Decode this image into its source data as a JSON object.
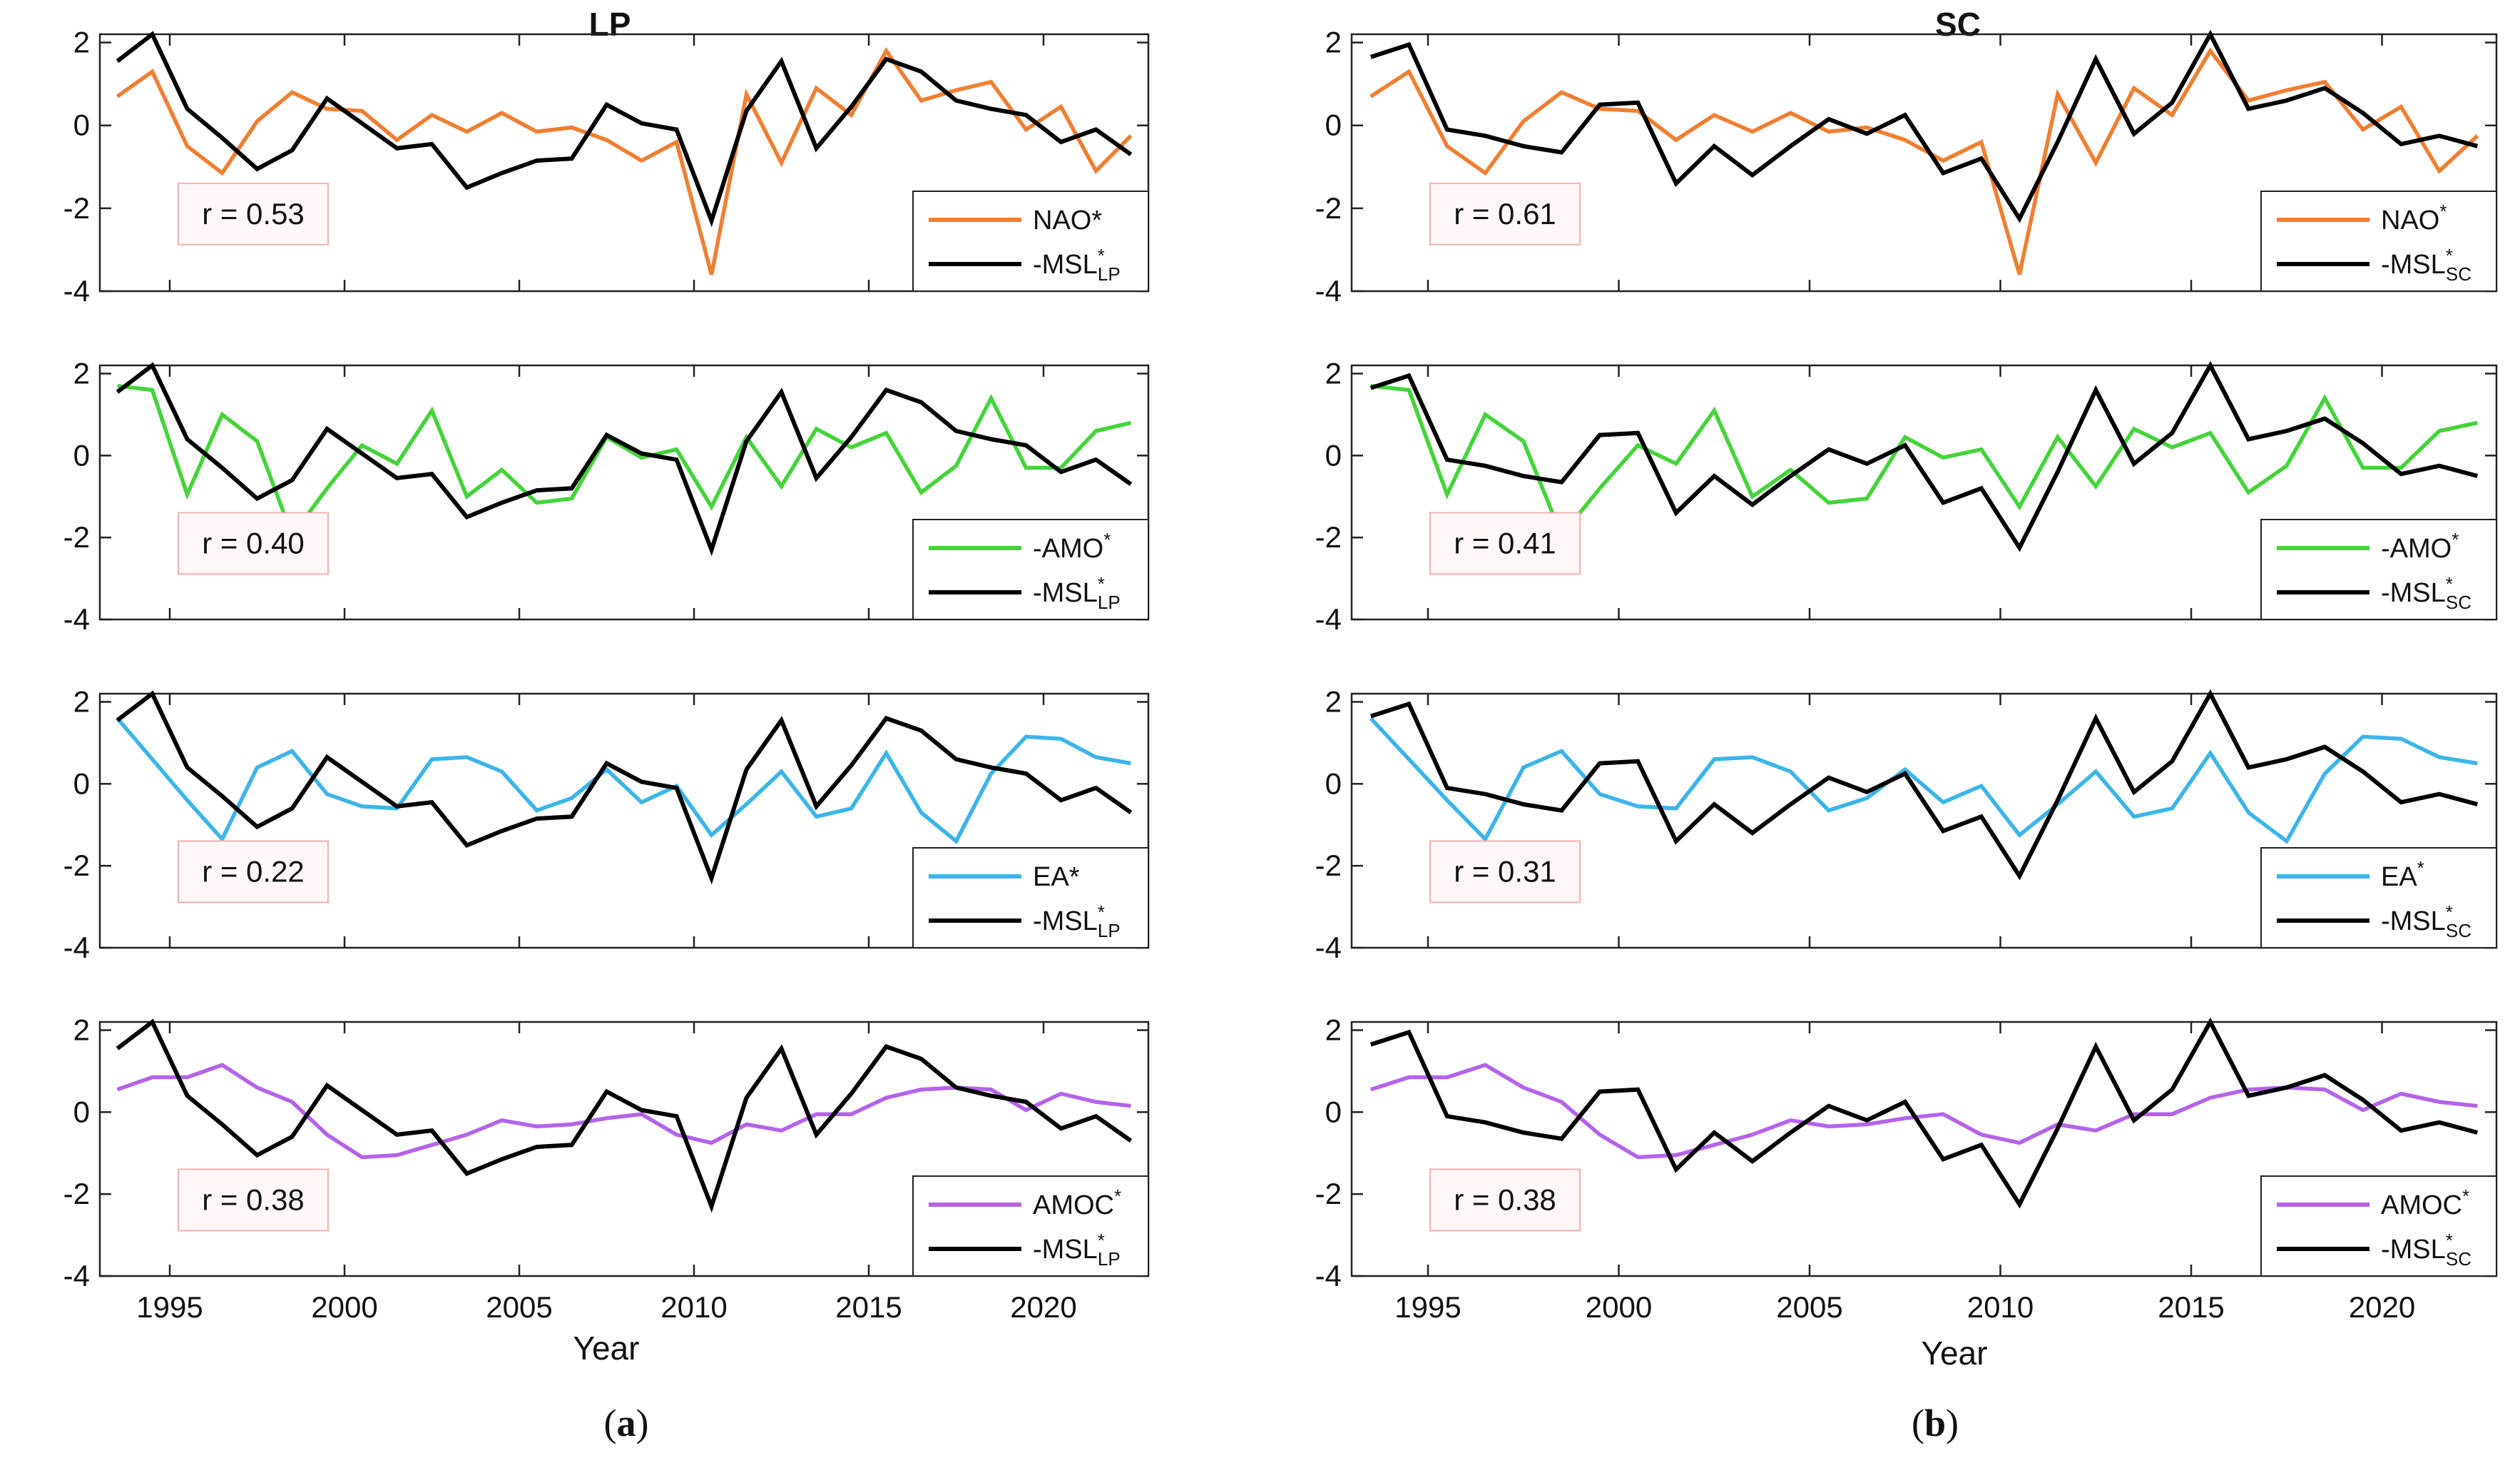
{
  "figure": {
    "left_title": "LP",
    "right_title": "SC",
    "xlabel": "Year",
    "caption_a_open": "(",
    "caption_a_letter": "a",
    "caption_a_close": ")",
    "caption_b_open": "(",
    "caption_b_letter": "b",
    "caption_b_close": ")"
  },
  "colors": {
    "NAO": "#f07f33",
    "AMO": "#44d43a",
    "EA": "#3cb5e8",
    "AMOC": "#b464ea",
    "MSL": "#000000",
    "rbox_border": "#f2b0b0",
    "rbox_fill": "#fff7f7"
  },
  "chart_data": [
    {
      "type": "line",
      "title": "LP",
      "column": "LP",
      "row": 0,
      "x": [
        1993.5,
        1994.5,
        1995.5,
        1996.5,
        1997.5,
        1998.5,
        1999.5,
        2000.5,
        2001.5,
        2002.5,
        2003.5,
        2004.5,
        2005.5,
        2006.5,
        2007.5,
        2008.5,
        2009.5,
        2010.5,
        2011.5,
        2012.5,
        2013.5,
        2014.5,
        2015.5,
        2016.5,
        2017.5,
        2018.5,
        2019.5,
        2020.5,
        2021.5,
        2022.5
      ],
      "xlim": [
        1993,
        2023
      ],
      "ylim": [
        -4,
        2.2
      ],
      "xticks": [
        1995,
        2000,
        2005,
        2010,
        2015,
        2020
      ],
      "yticks": [
        2,
        0,
        -2,
        -4
      ],
      "correlation_label": "r = 0.53",
      "series": [
        {
          "name": "NAO*",
          "legend_base": "NAO*",
          "legend_sup": "",
          "legend_sub": "",
          "color_key": "NAO",
          "values": [
            0.7,
            1.3,
            -0.5,
            -1.15,
            0.1,
            0.8,
            0.4,
            0.35,
            -0.35,
            0.25,
            -0.15,
            0.3,
            -0.15,
            -0.05,
            -0.35,
            -0.85,
            -0.4,
            -3.6,
            0.75,
            -0.9,
            0.9,
            0.25,
            1.8,
            0.6,
            0.85,
            1.05,
            -0.1,
            0.45,
            -1.1,
            -0.25
          ]
        },
        {
          "name": "-MSL*LP",
          "legend_base": "-MSL",
          "legend_sup": "*",
          "legend_sub": "LP",
          "color_key": "MSL",
          "values": [
            1.55,
            2.2,
            0.4,
            -0.3,
            -1.05,
            -0.6,
            0.65,
            0.05,
            -0.55,
            -0.45,
            -1.5,
            -1.15,
            -0.85,
            -0.8,
            0.5,
            0.05,
            -0.1,
            -2.3,
            0.35,
            1.55,
            -0.55,
            0.45,
            1.6,
            1.3,
            0.6,
            0.4,
            0.25,
            -0.4,
            -0.1,
            -0.7
          ]
        }
      ]
    },
    {
      "type": "line",
      "title": "LP",
      "column": "LP",
      "row": 1,
      "x": [
        1993.5,
        1994.5,
        1995.5,
        1996.5,
        1997.5,
        1998.5,
        1999.5,
        2000.5,
        2001.5,
        2002.5,
        2003.5,
        2004.5,
        2005.5,
        2006.5,
        2007.5,
        2008.5,
        2009.5,
        2010.5,
        2011.5,
        2012.5,
        2013.5,
        2014.5,
        2015.5,
        2016.5,
        2017.5,
        2018.5,
        2019.5,
        2020.5,
        2021.5,
        2022.5
      ],
      "xlim": [
        1993,
        2023
      ],
      "ylim": [
        -4,
        2.2
      ],
      "xticks": [
        1995,
        2000,
        2005,
        2010,
        2015,
        2020
      ],
      "yticks": [
        2,
        0,
        -2,
        -4
      ],
      "correlation_label": "r = 0.40",
      "series": [
        {
          "name": "-AMO*",
          "legend_base": "-AMO",
          "legend_sup": "*",
          "legend_sub": "",
          "color_key": "AMO",
          "values": [
            1.7,
            1.6,
            -0.95,
            1.0,
            0.35,
            -1.95,
            -0.8,
            0.25,
            -0.2,
            1.1,
            -1.0,
            -0.35,
            -1.15,
            -1.05,
            0.45,
            -0.05,
            0.15,
            -1.25,
            0.45,
            -0.75,
            0.65,
            0.2,
            0.55,
            -0.9,
            -0.25,
            1.4,
            -0.3,
            -0.3,
            0.6,
            0.8
          ]
        },
        {
          "name": "-MSL*LP",
          "legend_base": "-MSL",
          "legend_sup": "*",
          "legend_sub": "LP",
          "color_key": "MSL",
          "values": [
            1.55,
            2.2,
            0.4,
            -0.3,
            -1.05,
            -0.6,
            0.65,
            0.05,
            -0.55,
            -0.45,
            -1.5,
            -1.15,
            -0.85,
            -0.8,
            0.5,
            0.05,
            -0.1,
            -2.3,
            0.35,
            1.55,
            -0.55,
            0.45,
            1.6,
            1.3,
            0.6,
            0.4,
            0.25,
            -0.4,
            -0.1,
            -0.7
          ]
        }
      ]
    },
    {
      "type": "line",
      "title": "LP",
      "column": "LP",
      "row": 2,
      "x": [
        1993.5,
        1994.5,
        1995.5,
        1996.5,
        1997.5,
        1998.5,
        1999.5,
        2000.5,
        2001.5,
        2002.5,
        2003.5,
        2004.5,
        2005.5,
        2006.5,
        2007.5,
        2008.5,
        2009.5,
        2010.5,
        2011.5,
        2012.5,
        2013.5,
        2014.5,
        2015.5,
        2016.5,
        2017.5,
        2018.5,
        2019.5,
        2020.5,
        2021.5,
        2022.5
      ],
      "xlim": [
        1993,
        2023
      ],
      "ylim": [
        -4,
        2.2
      ],
      "xticks": [
        1995,
        2000,
        2005,
        2010,
        2015,
        2020
      ],
      "yticks": [
        2,
        0,
        -2,
        -4
      ],
      "correlation_label": "r = 0.22",
      "series": [
        {
          "name": "EA*",
          "legend_base": "EA*",
          "legend_sup": "",
          "legend_sub": "",
          "color_key": "EA",
          "values": [
            1.6,
            0.6,
            -0.4,
            -1.35,
            0.4,
            0.8,
            -0.25,
            -0.55,
            -0.6,
            0.6,
            0.65,
            0.3,
            -0.65,
            -0.35,
            0.35,
            -0.45,
            -0.05,
            -1.25,
            -0.5,
            0.3,
            -0.8,
            -0.6,
            0.75,
            -0.7,
            -1.4,
            0.25,
            1.15,
            1.1,
            0.65,
            0.5
          ]
        },
        {
          "name": "-MSL*LP",
          "legend_base": "-MSL",
          "legend_sup": "*",
          "legend_sub": "LP",
          "color_key": "MSL",
          "values": [
            1.55,
            2.2,
            0.4,
            -0.3,
            -1.05,
            -0.6,
            0.65,
            0.05,
            -0.55,
            -0.45,
            -1.5,
            -1.15,
            -0.85,
            -0.8,
            0.5,
            0.05,
            -0.1,
            -2.3,
            0.35,
            1.55,
            -0.55,
            0.45,
            1.6,
            1.3,
            0.6,
            0.4,
            0.25,
            -0.4,
            -0.1,
            -0.7
          ]
        }
      ]
    },
    {
      "type": "line",
      "title": "LP",
      "column": "LP",
      "row": 3,
      "x": [
        1993.5,
        1994.5,
        1995.5,
        1996.5,
        1997.5,
        1998.5,
        1999.5,
        2000.5,
        2001.5,
        2002.5,
        2003.5,
        2004.5,
        2005.5,
        2006.5,
        2007.5,
        2008.5,
        2009.5,
        2010.5,
        2011.5,
        2012.5,
        2013.5,
        2014.5,
        2015.5,
        2016.5,
        2017.5,
        2018.5,
        2019.5,
        2020.5,
        2021.5,
        2022.5
      ],
      "xlim": [
        1993,
        2023
      ],
      "ylim": [
        -4,
        2.2
      ],
      "xticks": [
        1995,
        2000,
        2005,
        2010,
        2015,
        2020
      ],
      "yticks": [
        2,
        0,
        -2,
        -4
      ],
      "correlation_label": "r = 0.38",
      "series": [
        {
          "name": "AMOC*",
          "legend_base": "AMOC",
          "legend_sup": "*",
          "legend_sub": "",
          "color_key": "AMOC",
          "values": [
            0.55,
            0.85,
            0.85,
            1.15,
            0.6,
            0.25,
            -0.55,
            -1.1,
            -1.05,
            -0.8,
            -0.55,
            -0.2,
            -0.35,
            -0.3,
            -0.15,
            -0.05,
            -0.55,
            -0.75,
            -0.3,
            -0.45,
            -0.05,
            -0.05,
            0.35,
            0.55,
            0.6,
            0.55,
            0.05,
            0.45,
            0.25,
            0.15
          ]
        },
        {
          "name": "-MSL*LP",
          "legend_base": "-MSL",
          "legend_sup": "*",
          "legend_sub": "LP",
          "color_key": "MSL",
          "values": [
            1.55,
            2.2,
            0.4,
            -0.3,
            -1.05,
            -0.6,
            0.65,
            0.05,
            -0.55,
            -0.45,
            -1.5,
            -1.15,
            -0.85,
            -0.8,
            0.5,
            0.05,
            -0.1,
            -2.3,
            0.35,
            1.55,
            -0.55,
            0.45,
            1.6,
            1.3,
            0.6,
            0.4,
            0.25,
            -0.4,
            -0.1,
            -0.7
          ]
        }
      ]
    },
    {
      "type": "line",
      "title": "SC",
      "column": "SC",
      "row": 0,
      "x": [
        1993.5,
        1994.5,
        1995.5,
        1996.5,
        1997.5,
        1998.5,
        1999.5,
        2000.5,
        2001.5,
        2002.5,
        2003.5,
        2004.5,
        2005.5,
        2006.5,
        2007.5,
        2008.5,
        2009.5,
        2010.5,
        2011.5,
        2012.5,
        2013.5,
        2014.5,
        2015.5,
        2016.5,
        2017.5,
        2018.5,
        2019.5,
        2020.5,
        2021.5,
        2022.5
      ],
      "xlim": [
        1993,
        2023
      ],
      "ylim": [
        -4,
        2.2
      ],
      "xticks": [
        1995,
        2000,
        2005,
        2010,
        2015,
        2020
      ],
      "yticks": [
        2,
        0,
        -2,
        -4
      ],
      "correlation_label": "r = 0.61",
      "series": [
        {
          "name": "NAO*",
          "legend_base": "NAO",
          "legend_sup": "*",
          "legend_sub": "",
          "color_key": "NAO",
          "values": [
            0.7,
            1.3,
            -0.5,
            -1.15,
            0.1,
            0.8,
            0.4,
            0.35,
            -0.35,
            0.25,
            -0.15,
            0.3,
            -0.15,
            -0.05,
            -0.35,
            -0.85,
            -0.4,
            -3.6,
            0.75,
            -0.9,
            0.9,
            0.25,
            1.8,
            0.6,
            0.85,
            1.05,
            -0.1,
            0.45,
            -1.1,
            -0.25
          ]
        },
        {
          "name": "-MSL*SC",
          "legend_base": "-MSL",
          "legend_sup": "*",
          "legend_sub": "SC",
          "color_key": "MSL",
          "values": [
            1.65,
            1.95,
            -0.1,
            -0.25,
            -0.5,
            -0.65,
            0.5,
            0.55,
            -1.4,
            -0.5,
            -1.2,
            -0.5,
            0.15,
            -0.2,
            0.25,
            -1.15,
            -0.8,
            -2.25,
            -0.4,
            1.6,
            -0.2,
            0.55,
            2.2,
            0.4,
            0.6,
            0.9,
            0.3,
            -0.45,
            -0.25,
            -0.5
          ]
        }
      ]
    },
    {
      "type": "line",
      "title": "SC",
      "column": "SC",
      "row": 1,
      "x": [
        1993.5,
        1994.5,
        1995.5,
        1996.5,
        1997.5,
        1998.5,
        1999.5,
        2000.5,
        2001.5,
        2002.5,
        2003.5,
        2004.5,
        2005.5,
        2006.5,
        2007.5,
        2008.5,
        2009.5,
        2010.5,
        2011.5,
        2012.5,
        2013.5,
        2014.5,
        2015.5,
        2016.5,
        2017.5,
        2018.5,
        2019.5,
        2020.5,
        2021.5,
        2022.5
      ],
      "xlim": [
        1993,
        2023
      ],
      "ylim": [
        -4,
        2.2
      ],
      "xticks": [
        1995,
        2000,
        2005,
        2010,
        2015,
        2020
      ],
      "yticks": [
        2,
        0,
        -2,
        -4
      ],
      "correlation_label": "r = 0.41",
      "series": [
        {
          "name": "-AMO*",
          "legend_base": "-AMO",
          "legend_sup": "*",
          "legend_sub": "",
          "color_key": "AMO",
          "values": [
            1.7,
            1.6,
            -0.95,
            1.0,
            0.35,
            -1.95,
            -0.8,
            0.25,
            -0.2,
            1.1,
            -1.0,
            -0.35,
            -1.15,
            -1.05,
            0.45,
            -0.05,
            0.15,
            -1.25,
            0.45,
            -0.75,
            0.65,
            0.2,
            0.55,
            -0.9,
            -0.25,
            1.4,
            -0.3,
            -0.3,
            0.6,
            0.8
          ]
        },
        {
          "name": "-MSL*SC",
          "legend_base": "-MSL",
          "legend_sup": "*",
          "legend_sub": "SC",
          "color_key": "MSL",
          "values": [
            1.65,
            1.95,
            -0.1,
            -0.25,
            -0.5,
            -0.65,
            0.5,
            0.55,
            -1.4,
            -0.5,
            -1.2,
            -0.5,
            0.15,
            -0.2,
            0.25,
            -1.15,
            -0.8,
            -2.25,
            -0.4,
            1.6,
            -0.2,
            0.55,
            2.2,
            0.4,
            0.6,
            0.9,
            0.3,
            -0.45,
            -0.25,
            -0.5
          ]
        }
      ]
    },
    {
      "type": "line",
      "title": "SC",
      "column": "SC",
      "row": 2,
      "x": [
        1993.5,
        1994.5,
        1995.5,
        1996.5,
        1997.5,
        1998.5,
        1999.5,
        2000.5,
        2001.5,
        2002.5,
        2003.5,
        2004.5,
        2005.5,
        2006.5,
        2007.5,
        2008.5,
        2009.5,
        2010.5,
        2011.5,
        2012.5,
        2013.5,
        2014.5,
        2015.5,
        2016.5,
        2017.5,
        2018.5,
        2019.5,
        2020.5,
        2021.5,
        2022.5
      ],
      "xlim": [
        1993,
        2023
      ],
      "ylim": [
        -4,
        2.2
      ],
      "xticks": [
        1995,
        2000,
        2005,
        2010,
        2015,
        2020
      ],
      "yticks": [
        2,
        0,
        -2,
        -4
      ],
      "correlation_label": "r = 0.31",
      "series": [
        {
          "name": "EA*",
          "legend_base": "EA",
          "legend_sup": "*",
          "legend_sub": "",
          "color_key": "EA",
          "values": [
            1.6,
            0.6,
            -0.4,
            -1.35,
            0.4,
            0.8,
            -0.25,
            -0.55,
            -0.6,
            0.6,
            0.65,
            0.3,
            -0.65,
            -0.35,
            0.35,
            -0.45,
            -0.05,
            -1.25,
            -0.5,
            0.3,
            -0.8,
            -0.6,
            0.75,
            -0.7,
            -1.4,
            0.25,
            1.15,
            1.1,
            0.65,
            0.5
          ]
        },
        {
          "name": "-MSL*SC",
          "legend_base": "-MSL",
          "legend_sup": "*",
          "legend_sub": "SC",
          "color_key": "MSL",
          "values": [
            1.65,
            1.95,
            -0.1,
            -0.25,
            -0.5,
            -0.65,
            0.5,
            0.55,
            -1.4,
            -0.5,
            -1.2,
            -0.5,
            0.15,
            -0.2,
            0.25,
            -1.15,
            -0.8,
            -2.25,
            -0.4,
            1.6,
            -0.2,
            0.55,
            2.2,
            0.4,
            0.6,
            0.9,
            0.3,
            -0.45,
            -0.25,
            -0.5
          ]
        }
      ]
    },
    {
      "type": "line",
      "title": "SC",
      "column": "SC",
      "row": 3,
      "x": [
        1993.5,
        1994.5,
        1995.5,
        1996.5,
        1997.5,
        1998.5,
        1999.5,
        2000.5,
        2001.5,
        2002.5,
        2003.5,
        2004.5,
        2005.5,
        2006.5,
        2007.5,
        2008.5,
        2009.5,
        2010.5,
        2011.5,
        2012.5,
        2013.5,
        2014.5,
        2015.5,
        2016.5,
        2017.5,
        2018.5,
        2019.5,
        2020.5,
        2021.5,
        2022.5
      ],
      "xlim": [
        1993,
        2023
      ],
      "ylim": [
        -4,
        2.2
      ],
      "xticks": [
        1995,
        2000,
        2005,
        2010,
        2015,
        2020
      ],
      "yticks": [
        2,
        0,
        -2,
        -4
      ],
      "correlation_label": "r = 0.38",
      "series": [
        {
          "name": "AMOC*",
          "legend_base": "AMOC",
          "legend_sup": "*",
          "legend_sub": "",
          "color_key": "AMOC",
          "values": [
            0.55,
            0.85,
            0.85,
            1.15,
            0.6,
            0.25,
            -0.55,
            -1.1,
            -1.05,
            -0.8,
            -0.55,
            -0.2,
            -0.35,
            -0.3,
            -0.15,
            -0.05,
            -0.55,
            -0.75,
            -0.3,
            -0.45,
            -0.05,
            -0.05,
            0.35,
            0.55,
            0.6,
            0.55,
            0.05,
            0.45,
            0.25,
            0.15
          ]
        },
        {
          "name": "-MSL*SC",
          "legend_base": "-MSL",
          "legend_sup": "*",
          "legend_sub": "SC",
          "color_key": "MSL",
          "values": [
            1.65,
            1.95,
            -0.1,
            -0.25,
            -0.5,
            -0.65,
            0.5,
            0.55,
            -1.4,
            -0.5,
            -1.2,
            -0.5,
            0.15,
            -0.2,
            0.25,
            -1.15,
            -0.8,
            -2.25,
            -0.4,
            1.6,
            -0.2,
            0.55,
            2.2,
            0.4,
            0.6,
            0.9,
            0.3,
            -0.45,
            -0.25,
            -0.5
          ]
        }
      ]
    }
  ]
}
